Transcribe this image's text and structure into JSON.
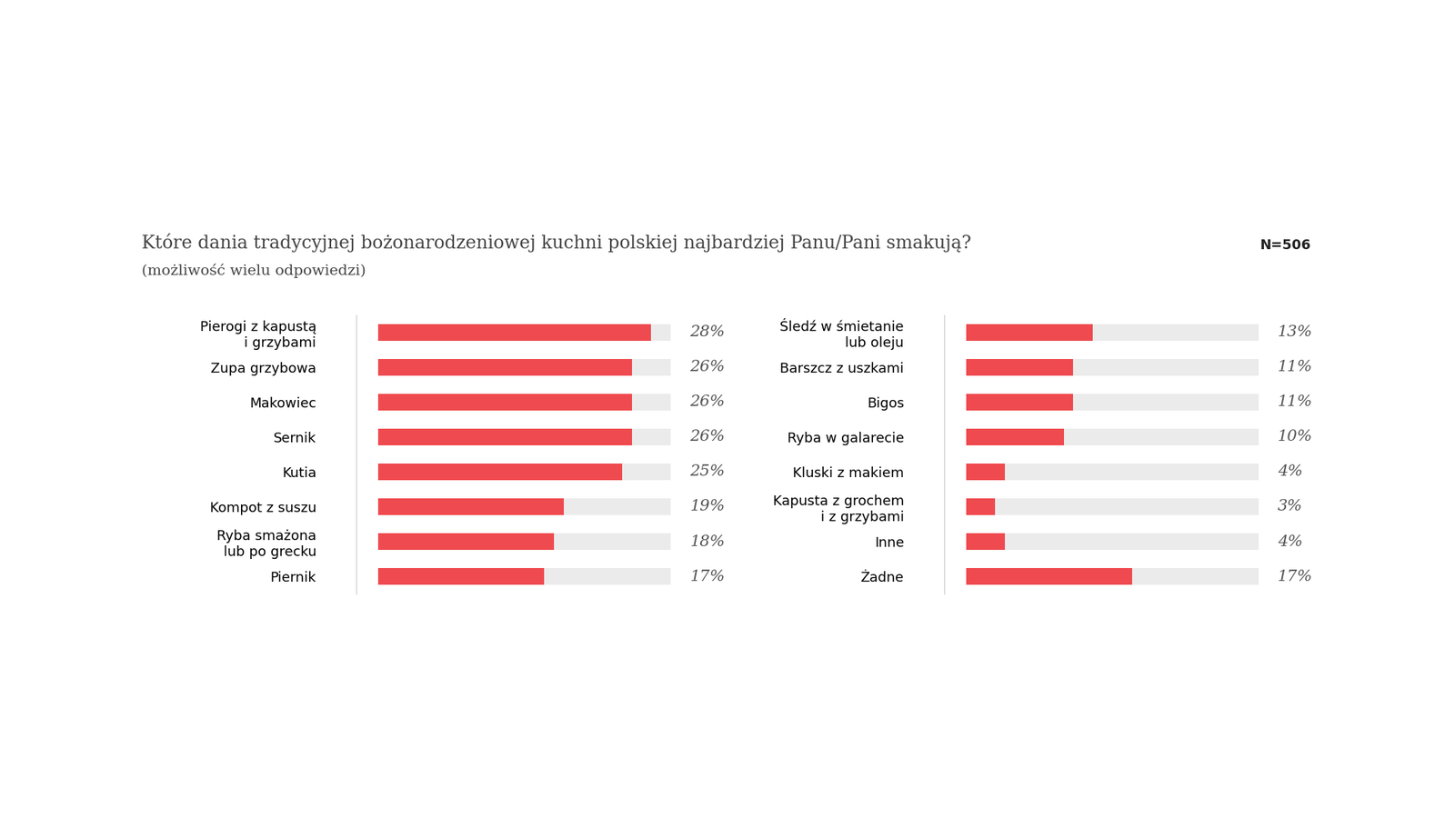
{
  "title": "Które dania tradycyjnej bożonarodzeniowej kuchni polskiej najbardziej Panu/Pani smakują?",
  "subtitle": "(możliwość wielu odpowiedzi)",
  "annotations": [
    "N=506"
  ],
  "chart_data": [
    {
      "type": "bar",
      "orientation": "horizontal",
      "data_labels": true,
      "tick_labels": "y",
      "grid": false,
      "color": "#ef4a4f",
      "categories": [
        "Pierogi z kapustą\ni grzybami",
        "Zupa grzybowa",
        "Makowiec",
        "Sernik",
        "Kutia",
        "Kompot z suszu",
        "Ryba smażona\nlub po grecku",
        "Piernik"
      ],
      "values": [
        28,
        26,
        26,
        26,
        25,
        19,
        18,
        17
      ],
      "value_labels": [
        "28%",
        "26%",
        "26%",
        "26%",
        "25%",
        "19%",
        "18%",
        "17%"
      ],
      "xlim": [
        0,
        30
      ]
    },
    {
      "type": "bar",
      "orientation": "horizontal",
      "data_labels": true,
      "tick_labels": "y",
      "grid": false,
      "color": "#ef4a4f",
      "categories": [
        "Śledź w śmietanie\nlub oleju",
        "Barszcz z uszkami",
        "Bigos",
        "Ryba w galarecie",
        "Kluski z makiem",
        "Kapusta z grochem\ni z grzybami",
        "Inne",
        "Żadne"
      ],
      "values": [
        13,
        11,
        11,
        10,
        4,
        3,
        4,
        17
      ],
      "value_labels": [
        "13%",
        "11%",
        "11%",
        "10%",
        "4%",
        "3%",
        "4%",
        "17%"
      ],
      "xlim": [
        0,
        30
      ]
    }
  ]
}
